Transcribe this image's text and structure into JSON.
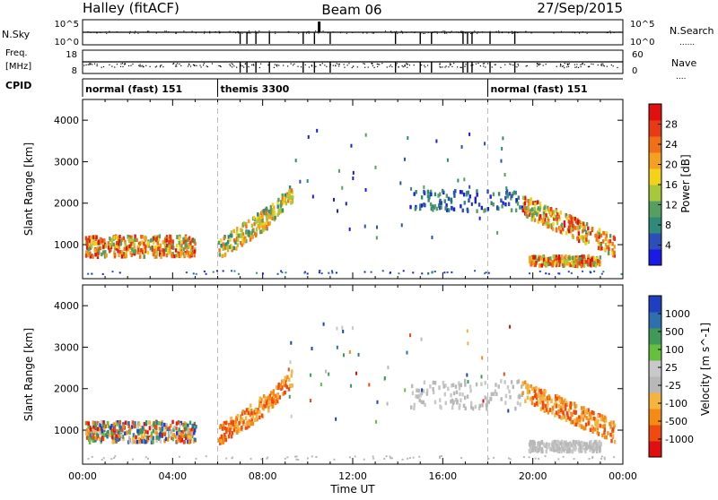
{
  "header": {
    "station": "Halley (fitACF)",
    "beam": "Beam 06",
    "date": "27/Sep/2015"
  },
  "top_panels": {
    "nsky_label": "N.Sky",
    "nsky_tick_top": "10^5",
    "nsky_tick_bottom": "10^0",
    "nsearch_label": "N.Search",
    "nsearch_tick_top": "10^5",
    "nsearch_tick_bottom": "10^0",
    "freq_label_1": "Freq.",
    "freq_label_2": "[MHz]",
    "freq_tick_top": "18",
    "freq_tick_bottom": "8",
    "nave_label": "Nave",
    "nave_tick_top": "60",
    "nave_tick_bottom": "0",
    "cpid_label": "CPID",
    "cpid_segments": [
      {
        "label": "normal (fast) 151",
        "start_hour": 0,
        "end_hour": 6
      },
      {
        "label": "themis 3300",
        "start_hour": 6,
        "end_hour": 18
      },
      {
        "label": "normal (fast) 151",
        "start_hour": 18,
        "end_hour": 24
      }
    ]
  },
  "colors": {
    "scale": [
      "#1a1ae6",
      "#2b4fb8",
      "#2f8a7a",
      "#55a060",
      "#a6c83a",
      "#f2d21a",
      "#f5a020",
      "#f07018",
      "#e83a14",
      "#e01010"
    ],
    "velocity": [
      "#e01010",
      "#f04a10",
      "#f58a14",
      "#f5b440",
      "#b8b8b8",
      "#c8c8c8",
      "#66c040",
      "#3f9a5a",
      "#2e6fb0",
      "#1f3fc0"
    ]
  },
  "chart_data": [
    {
      "type": "heatmap",
      "title": "Power",
      "xlabel": "",
      "ylabel": "Slant Range [km]",
      "xlim": [
        0,
        24
      ],
      "ylim": [
        180,
        4500
      ],
      "x_ticks": [
        "00:00",
        "04:00",
        "08:00",
        "12:00",
        "16:00",
        "20:00",
        "00:00"
      ],
      "y_ticks": [
        1000,
        2000,
        3000,
        4000
      ],
      "colorbar_label": "Power [dB]",
      "colorbar_ticks": [
        "4",
        "8",
        "12",
        "16",
        "20",
        "24",
        "28"
      ],
      "dashed_lines_hour": [
        6,
        18
      ],
      "regions": [
        {
          "t0": 0.1,
          "t1": 5.0,
          "r_center": 1000,
          "r_spread": 250,
          "density": 0.9,
          "level": "high"
        },
        {
          "t0": 6.0,
          "t1": 8.2,
          "r_center_start": 900,
          "r_center_end": 1700,
          "r_spread": 250,
          "density": 0.75,
          "level": "mid"
        },
        {
          "t0": 8.2,
          "t1": 9.3,
          "r_center_start": 1700,
          "r_center_end": 2300,
          "r_spread": 200,
          "density": 0.7,
          "level": "mid"
        },
        {
          "t0": 14.5,
          "t1": 19.5,
          "r_center": 2100,
          "r_spread": 250,
          "density": 0.25,
          "level": "low"
        },
        {
          "t0": 19.5,
          "t1": 23.6,
          "r_center_start": 2000,
          "r_center_end": 1000,
          "r_spread": 250,
          "density": 0.7,
          "level": "high"
        },
        {
          "t0": 19.8,
          "t1": 23.0,
          "r_center": 650,
          "r_spread": 120,
          "density": 0.8,
          "level": "high"
        }
      ]
    },
    {
      "type": "heatmap",
      "title": "Velocity",
      "xlabel": "Time UT",
      "ylabel": "Slant Range [km]",
      "xlim": [
        0,
        24
      ],
      "ylim": [
        180,
        4500
      ],
      "x_ticks": [
        "00:00",
        "04:00",
        "08:00",
        "12:00",
        "16:00",
        "20:00",
        "00:00"
      ],
      "y_ticks": [
        1000,
        2000,
        3000,
        4000
      ],
      "colorbar_label": "Velocity [m s^-1]",
      "colorbar_ticks": [
        "1000",
        "500",
        "100",
        "25",
        "-25",
        "-100",
        "-500",
        "-1000"
      ],
      "dashed_lines_hour": [
        6,
        18
      ],
      "regions": [
        {
          "t0": 0.1,
          "t1": 5.0,
          "r_center": 1000,
          "r_spread": 250,
          "density": 0.9,
          "level": "mixed"
        },
        {
          "t0": 6.0,
          "t1": 8.2,
          "r_center_start": 900,
          "r_center_end": 1700,
          "r_spread": 250,
          "density": 0.75,
          "level": "neg"
        },
        {
          "t0": 8.2,
          "t1": 9.3,
          "r_center_start": 1700,
          "r_center_end": 2300,
          "r_spread": 200,
          "density": 0.7,
          "level": "neg"
        },
        {
          "t0": 14.5,
          "t1": 19.5,
          "r_center": 1900,
          "r_spread": 350,
          "density": 0.25,
          "level": "grey"
        },
        {
          "t0": 19.5,
          "t1": 23.6,
          "r_center_start": 2000,
          "r_center_end": 1000,
          "r_spread": 250,
          "density": 0.7,
          "level": "neg"
        },
        {
          "t0": 19.8,
          "t1": 23.0,
          "r_center": 650,
          "r_spread": 120,
          "density": 0.8,
          "level": "grey"
        }
      ]
    }
  ]
}
